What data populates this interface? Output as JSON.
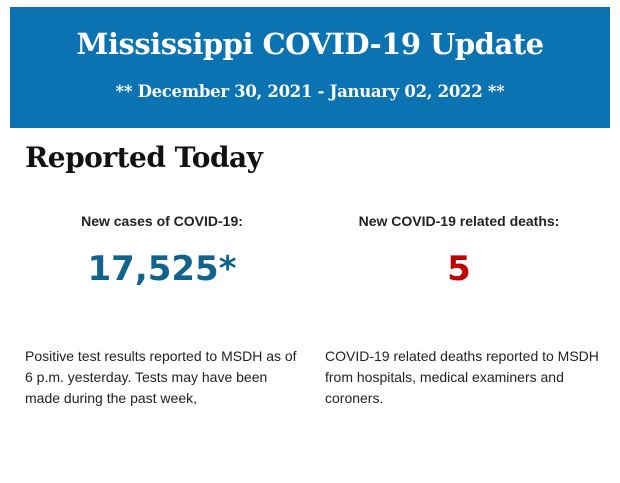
{
  "header": {
    "title": "Mississippi COVID-19 Update",
    "date_range": "** December 30, 2021 - January 02, 2022 **"
  },
  "section_title": "Reported Today",
  "cases": {
    "label": "New cases of COVID-19:",
    "value": "17,525*",
    "color": "#11638f",
    "description": "Positive test results reported to MSDH as of 6 p.m. yesterday. Tests may have been made during the past week,"
  },
  "deaths": {
    "label": "New COVID-19 related deaths:",
    "value": "5",
    "color": "#c00000",
    "description": "COVID-19 related deaths reported to MSDH from hospitals, medical examiners and coroners."
  }
}
